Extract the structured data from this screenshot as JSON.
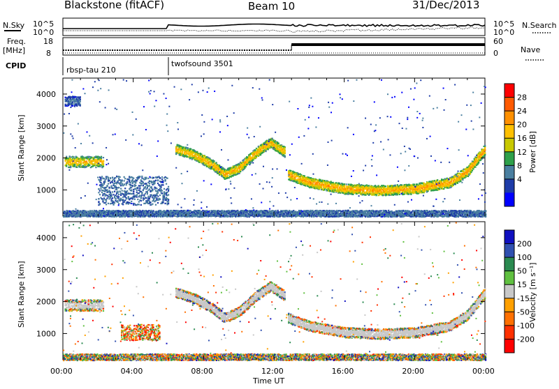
{
  "header": {
    "station": "Blackstone (fitACF)",
    "beam": "Beam 10",
    "date": "31/Dec/2013"
  },
  "noise_panel": {
    "left_label": "N.Sky",
    "right_label": "N.Search",
    "ticks": [
      "10^5",
      "10^0"
    ]
  },
  "freq_panel": {
    "left_label": "Freq.",
    "left_unit": "[MHz]",
    "left_ticks": [
      "18",
      "8"
    ],
    "right_label": "Nave",
    "right_ticks": [
      "60",
      "0"
    ]
  },
  "cpid_panel": {
    "label": "CPID",
    "segments": [
      {
        "name": "rbsp-tau 210",
        "start_hour": 0
      },
      {
        "name": "twofsound 3501",
        "start_hour": 6
      }
    ]
  },
  "power_colorbar": {
    "label": "Power [dB]",
    "ticks": [
      "28",
      "24",
      "20",
      "16",
      "12",
      "8",
      "4"
    ],
    "colors": [
      "#ff0000",
      "#ff5a00",
      "#ff9000",
      "#ffc000",
      "#c8c800",
      "#2ea04a",
      "#4a7fa0",
      "#1e3ca8",
      "#0000ff"
    ]
  },
  "velocity_colorbar": {
    "label": "Velocity [m s⁻¹]",
    "ticks": [
      "200",
      "100",
      "50",
      "15",
      "-15",
      "-50",
      "-100",
      "-200"
    ],
    "colors": [
      "#1010c0",
      "#3050b0",
      "#2a8a50",
      "#60c040",
      "#c8c8c8",
      "#ffa000",
      "#ff7000",
      "#ff3000",
      "#ff0000"
    ]
  },
  "axes": {
    "ylabel": "Slant Range [km]",
    "xlabel": "Time UT",
    "x_ticks": [
      "00:00",
      "04:00",
      "08:00",
      "12:00",
      "16:00",
      "20:00",
      "00:00"
    ],
    "y_ticks": [
      "1000",
      "2000",
      "3000",
      "4000"
    ]
  },
  "chart_data": [
    {
      "type": "heatmap",
      "title": "",
      "xlabel": "",
      "ylabel": "Slant Range [km]",
      "xlim": [
        0,
        24
      ],
      "ylim": [
        180,
        4500
      ],
      "colorbar_label": "Power [dB]",
      "echo_bands": [
        {
          "start_hour": 0.1,
          "end_hour": 2.3,
          "center_range_km": 1900,
          "width_km": 350,
          "power_db": 22
        },
        {
          "start_hour": 0.1,
          "end_hour": 1.0,
          "center_range_km": 3800,
          "width_km": 300,
          "power_db": 8
        },
        {
          "start_hour": 6.4,
          "end_hour": 12.6,
          "path_hours": [
            6.4,
            7.5,
            8.5,
            9.2,
            10.0,
            11.0,
            11.8,
            12.6
          ],
          "path_range_km": [
            2300,
            2100,
            1800,
            1500,
            1700,
            2200,
            2500,
            2200
          ],
          "power_db": 22
        },
        {
          "start_hour": 12.8,
          "end_hour": 24.0,
          "path_hours": [
            12.8,
            14.0,
            16.0,
            18.0,
            20.0,
            22.0,
            23.0,
            24.0
          ],
          "path_range_km": [
            1500,
            1250,
            1050,
            1000,
            1050,
            1250,
            1600,
            2300
          ],
          "power_db": 24
        },
        {
          "start_hour": 2.0,
          "end_hour": 6.0,
          "center_range_km": 1000,
          "width_km": 900,
          "power_db": 8
        },
        {
          "start_hour": 0.0,
          "end_hour": 24.0,
          "center_range_km": 280,
          "width_km": 200,
          "power_db": 6
        }
      ]
    },
    {
      "type": "heatmap",
      "title": "",
      "xlabel": "Time UT",
      "ylabel": "Slant Range [km]",
      "xlim": [
        0,
        24
      ],
      "ylim": [
        180,
        4500
      ],
      "colorbar_label": "Velocity [m s⁻¹]",
      "echo_bands": [
        {
          "start_hour": 0.1,
          "end_hour": 2.3,
          "center_range_km": 1900,
          "width_km": 350,
          "velocity_ms": 0
        },
        {
          "start_hour": 3.3,
          "end_hour": 5.5,
          "center_range_km": 1050,
          "width_km": 500,
          "velocity_ms": -60
        },
        {
          "start_hour": 6.4,
          "end_hour": 12.6,
          "path_hours": [
            6.4,
            7.5,
            8.5,
            9.2,
            10.0,
            11.0,
            11.8,
            12.6
          ],
          "path_range_km": [
            2300,
            2100,
            1800,
            1500,
            1700,
            2200,
            2500,
            2200
          ],
          "velocity_ms": 10
        },
        {
          "start_hour": 12.8,
          "end_hour": 24.0,
          "path_hours": [
            12.8,
            14.0,
            16.0,
            18.0,
            20.0,
            22.0,
            23.0,
            24.0
          ],
          "path_range_km": [
            1500,
            1250,
            1050,
            1000,
            1050,
            1250,
            1600,
            2300
          ],
          "velocity_ms": 0
        },
        {
          "start_hour": 0.0,
          "end_hour": 24.0,
          "center_range_km": 280,
          "width_km": 200,
          "velocity_ms": 20
        }
      ]
    }
  ]
}
